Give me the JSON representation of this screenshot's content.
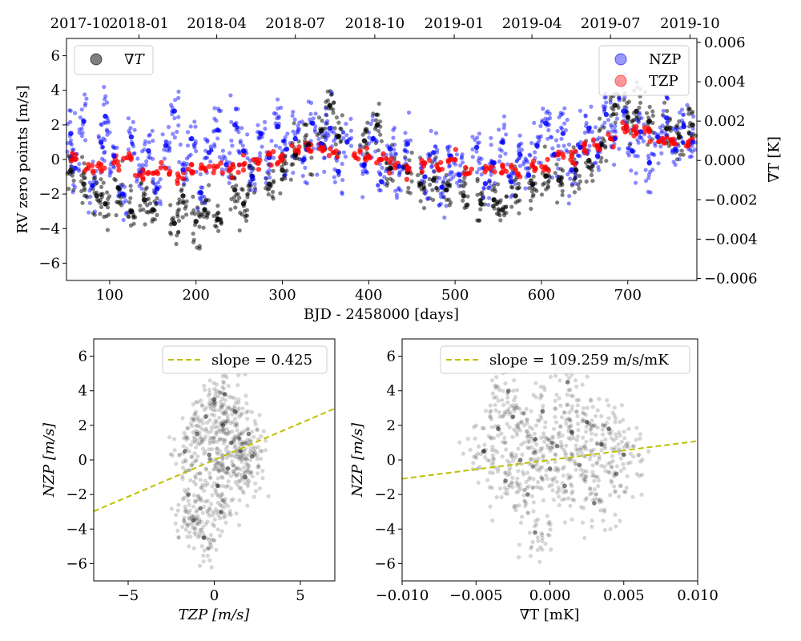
{
  "chart_data": [
    {
      "id": "timeseries",
      "type": "scatter",
      "xlabel": "BJD - 2458000 [days]",
      "ylabel": "RV zero points [m/s]",
      "ylabel2": "∇T [K]",
      "xlim": [
        50,
        780
      ],
      "ylim": [
        -7,
        7
      ],
      "y2lim": [
        -0.0061,
        0.0062
      ],
      "xticks": [
        100,
        200,
        300,
        400,
        500,
        600,
        700
      ],
      "yticks": [
        -6,
        -4,
        -2,
        0,
        2,
        4,
        6
      ],
      "y2ticks": [
        -0.006,
        -0.004,
        -0.002,
        0.0,
        0.002,
        0.004,
        0.006
      ],
      "y2ticklabels": [
        "−0.006",
        "−0.004",
        "−0.002",
        "0.000",
        "0.002",
        "0.004",
        "0.006"
      ],
      "top_axis": {
        "ticks": [
          42,
          134,
          224,
          315,
          407,
          499,
          589,
          680,
          772
        ],
        "labels": [
          "2017-10",
          "2018-01",
          "2018-04",
          "2018-07",
          "2018-10",
          "2019-01",
          "2019-04",
          "2019-07",
          "2019-10"
        ]
      },
      "legend_left": [
        "∇T"
      ],
      "legend_right": [
        "NZP",
        "TZP"
      ],
      "series": [
        {
          "name": "∇T",
          "color": "#000000",
          "axis": "right",
          "unit": "K",
          "points": [
            [
              55,
              -0.0005
            ],
            [
              70,
              -0.0012
            ],
            [
              85,
              -0.0018
            ],
            [
              95,
              -0.0022
            ],
            [
              110,
              -0.0014
            ],
            [
              125,
              -0.0026
            ],
            [
              140,
              -0.002
            ],
            [
              150,
              -0.0025
            ],
            [
              175,
              -0.0032
            ],
            [
              185,
              -0.0018
            ],
            [
              200,
              -0.0031
            ],
            [
              210,
              -0.0025
            ],
            [
              225,
              -0.003
            ],
            [
              245,
              -0.0015
            ],
            [
              255,
              -0.0022
            ],
            [
              265,
              -0.0008
            ],
            [
              285,
              -0.0012
            ],
            [
              300,
              -0.0005
            ],
            [
              315,
              0.0003
            ],
            [
              330,
              0.0008
            ],
            [
              345,
              0.0015
            ],
            [
              355,
              0.0028
            ],
            [
              365,
              0.0012
            ],
            [
              395,
              0.001
            ],
            [
              410,
              0.0018
            ],
            [
              425,
              -0.0004
            ],
            [
              445,
              -0.0006
            ],
            [
              460,
              -0.0012
            ],
            [
              475,
              -0.001
            ],
            [
              490,
              -0.0015
            ],
            [
              510,
              -0.0018
            ],
            [
              530,
              -0.0022
            ],
            [
              545,
              -0.002
            ],
            [
              555,
              -0.0025
            ],
            [
              570,
              -0.0018
            ],
            [
              590,
              -0.0012
            ],
            [
              605,
              -0.0008
            ],
            [
              620,
              -0.001
            ],
            [
              640,
              -0.0005
            ],
            [
              655,
              0.0
            ],
            [
              670,
              0.0008
            ],
            [
              685,
              0.0028
            ],
            [
              700,
              0.0022
            ],
            [
              710,
              0.0025
            ],
            [
              725,
              0.002
            ],
            [
              745,
              0.0016
            ],
            [
              760,
              0.0012
            ],
            [
              775,
              0.0018
            ]
          ]
        },
        {
          "name": "NZP",
          "color": "#0000ff",
          "axis": "left",
          "unit": "m/s",
          "points": [
            [
              55,
              1.5
            ],
            [
              60,
              -0.5
            ],
            [
              70,
              2.2
            ],
            [
              80,
              -1.5
            ],
            [
              90,
              1.0
            ],
            [
              95,
              2.5
            ],
            [
              105,
              0.2
            ],
            [
              115,
              -2.0
            ],
            [
              125,
              1.3
            ],
            [
              135,
              -0.8
            ],
            [
              145,
              0.5
            ],
            [
              155,
              -1.7
            ],
            [
              165,
              0.8
            ],
            [
              175,
              2.8
            ],
            [
              185,
              -0.6
            ],
            [
              195,
              1.2
            ],
            [
              205,
              -1.9
            ],
            [
              215,
              0.4
            ],
            [
              225,
              1.7
            ],
            [
              235,
              -0.3
            ],
            [
              245,
              2.0
            ],
            [
              255,
              0.5
            ],
            [
              265,
              -1.0
            ],
            [
              275,
              1.5
            ],
            [
              285,
              0.1
            ],
            [
              295,
              1.9
            ],
            [
              305,
              0.6
            ],
            [
              315,
              1.2
            ],
            [
              325,
              0.0
            ],
            [
              335,
              2.1
            ],
            [
              345,
              0.9
            ],
            [
              355,
              1.8
            ],
            [
              365,
              -0.7
            ],
            [
              375,
              1.0
            ],
            [
              395,
              -0.3
            ],
            [
              405,
              1.2
            ],
            [
              415,
              -1.3
            ],
            [
              425,
              0.6
            ],
            [
              435,
              -0.4
            ],
            [
              445,
              0.9
            ],
            [
              465,
              -1.0
            ],
            [
              475,
              0.4
            ],
            [
              485,
              -1.6
            ],
            [
              495,
              0.2
            ],
            [
              505,
              -0.9
            ],
            [
              525,
              0.7
            ],
            [
              535,
              -1.4
            ],
            [
              545,
              -0.2
            ],
            [
              555,
              1.0
            ],
            [
              565,
              -1.3
            ],
            [
              575,
              0.3
            ],
            [
              585,
              -0.9
            ],
            [
              595,
              0.8
            ],
            [
              605,
              2.1
            ],
            [
              615,
              0.3
            ],
            [
              625,
              1.5
            ],
            [
              635,
              -0.6
            ],
            [
              645,
              0.7
            ],
            [
              655,
              1.8
            ],
            [
              665,
              0.2
            ],
            [
              675,
              2.6
            ],
            [
              685,
              1.2
            ],
            [
              695,
              2.8
            ],
            [
              705,
              0.5
            ],
            [
              715,
              1.6
            ],
            [
              725,
              -0.2
            ],
            [
              735,
              1.3
            ],
            [
              745,
              2.4
            ],
            [
              755,
              0.6
            ],
            [
              765,
              1.9
            ],
            [
              775,
              1.0
            ]
          ]
        },
        {
          "name": "TZP",
          "color": "#ff0000",
          "axis": "left",
          "unit": "m/s",
          "points": [
            [
              60,
              0.0
            ],
            [
              75,
              -0.5
            ],
            [
              90,
              -0.3
            ],
            [
              105,
              -0.2
            ],
            [
              120,
              0.1
            ],
            [
              135,
              -0.9
            ],
            [
              150,
              -0.8
            ],
            [
              165,
              -0.5
            ],
            [
              180,
              -1.0
            ],
            [
              195,
              -0.7
            ],
            [
              210,
              -0.5
            ],
            [
              225,
              -0.4
            ],
            [
              240,
              -0.6
            ],
            [
              255,
              -0.3
            ],
            [
              270,
              0.0
            ],
            [
              285,
              0.3
            ],
            [
              300,
              0.0
            ],
            [
              315,
              0.5
            ],
            [
              330,
              0.6
            ],
            [
              345,
              0.7
            ],
            [
              360,
              0.4
            ],
            [
              385,
              0.1
            ],
            [
              400,
              0.2
            ],
            [
              415,
              0.0
            ],
            [
              430,
              -0.3
            ],
            [
              445,
              -0.6
            ],
            [
              465,
              -0.2
            ],
            [
              480,
              -0.5
            ],
            [
              495,
              0.0
            ],
            [
              515,
              -0.8
            ],
            [
              540,
              -0.5
            ],
            [
              555,
              -0.4
            ],
            [
              570,
              -0.6
            ],
            [
              590,
              -0.4
            ],
            [
              605,
              -0.5
            ],
            [
              620,
              0.3
            ],
            [
              635,
              0.2
            ],
            [
              650,
              0.5
            ],
            [
              665,
              0.8
            ],
            [
              680,
              1.2
            ],
            [
              695,
              1.8
            ],
            [
              710,
              1.5
            ],
            [
              725,
              1.6
            ],
            [
              740,
              1.2
            ],
            [
              755,
              0.9
            ],
            [
              770,
              1.0
            ]
          ]
        }
      ]
    },
    {
      "id": "nzp_vs_tzp",
      "type": "scatter",
      "xlabel": "TZP [m/s]",
      "ylabel": "NZP [m/s]",
      "xlim": [
        -7,
        7
      ],
      "ylim": [
        -7,
        7
      ],
      "xticks": [
        -5,
        0,
        5
      ],
      "xticklabels": [
        "−5",
        "0",
        "5"
      ],
      "yticks": [
        -6,
        -4,
        -2,
        0,
        2,
        4,
        6
      ],
      "fit": {
        "label": "slope = 0.425",
        "slope": 0.425,
        "intercept": 0.0,
        "color": "#bfbf00"
      },
      "points": [
        [
          -1.5,
          -2.0
        ],
        [
          -1.0,
          1.5
        ],
        [
          -0.5,
          2.5
        ],
        [
          0.0,
          3.5
        ],
        [
          0.5,
          2.0
        ],
        [
          1.0,
          1.0
        ],
        [
          1.5,
          0.5
        ],
        [
          2.0,
          1.5
        ],
        [
          -1.2,
          -3.5
        ],
        [
          -0.8,
          -2.8
        ],
        [
          0.2,
          -1.5
        ],
        [
          0.8,
          -0.5
        ],
        [
          1.8,
          -1.0
        ],
        [
          -1.7,
          0.5
        ],
        [
          -0.3,
          0.3
        ],
        [
          0.6,
          3.8
        ],
        [
          1.2,
          2.8
        ],
        [
          -0.6,
          -4.5
        ],
        [
          0.4,
          -3.0
        ],
        [
          2.2,
          0.2
        ]
      ]
    },
    {
      "id": "nzp_vs_gradT",
      "type": "scatter",
      "xlabel": "∇T [mK]",
      "ylabel": "NZP [m/s]",
      "xlim": [
        -0.01,
        0.01
      ],
      "ylim": [
        -7,
        7
      ],
      "xticks": [
        -0.01,
        -0.005,
        0.0,
        0.005,
        0.01
      ],
      "xticklabels": [
        "−0.010",
        "−0.005",
        "0.000",
        "0.005",
        "0.010"
      ],
      "yticks": [
        -6,
        -4,
        -2,
        0,
        2,
        4,
        6
      ],
      "fit": {
        "label": "slope = 109.259 m/s/mK",
        "slope": 109.259,
        "intercept": 0.0,
        "color": "#bfbf00"
      },
      "points": [
        [
          -0.0045,
          0.5
        ],
        [
          -0.0035,
          1.8
        ],
        [
          -0.003,
          -1.2
        ],
        [
          -0.0025,
          2.5
        ],
        [
          -0.002,
          0.0
        ],
        [
          -0.0015,
          -2.0
        ],
        [
          -0.001,
          1.2
        ],
        [
          -0.0005,
          2.8
        ],
        [
          0.0,
          -0.5
        ],
        [
          0.0005,
          0.8
        ],
        [
          0.001,
          -1.5
        ],
        [
          0.0015,
          1.6
        ],
        [
          0.002,
          -0.3
        ],
        [
          0.0025,
          2.2
        ],
        [
          0.003,
          -2.5
        ],
        [
          0.0035,
          0.9
        ],
        [
          0.004,
          1.8
        ],
        [
          0.0045,
          -0.8
        ],
        [
          0.005,
          0.3
        ],
        [
          -0.0028,
          4.0
        ],
        [
          -0.001,
          -4.2
        ],
        [
          0.0012,
          4.5
        ]
      ]
    }
  ]
}
